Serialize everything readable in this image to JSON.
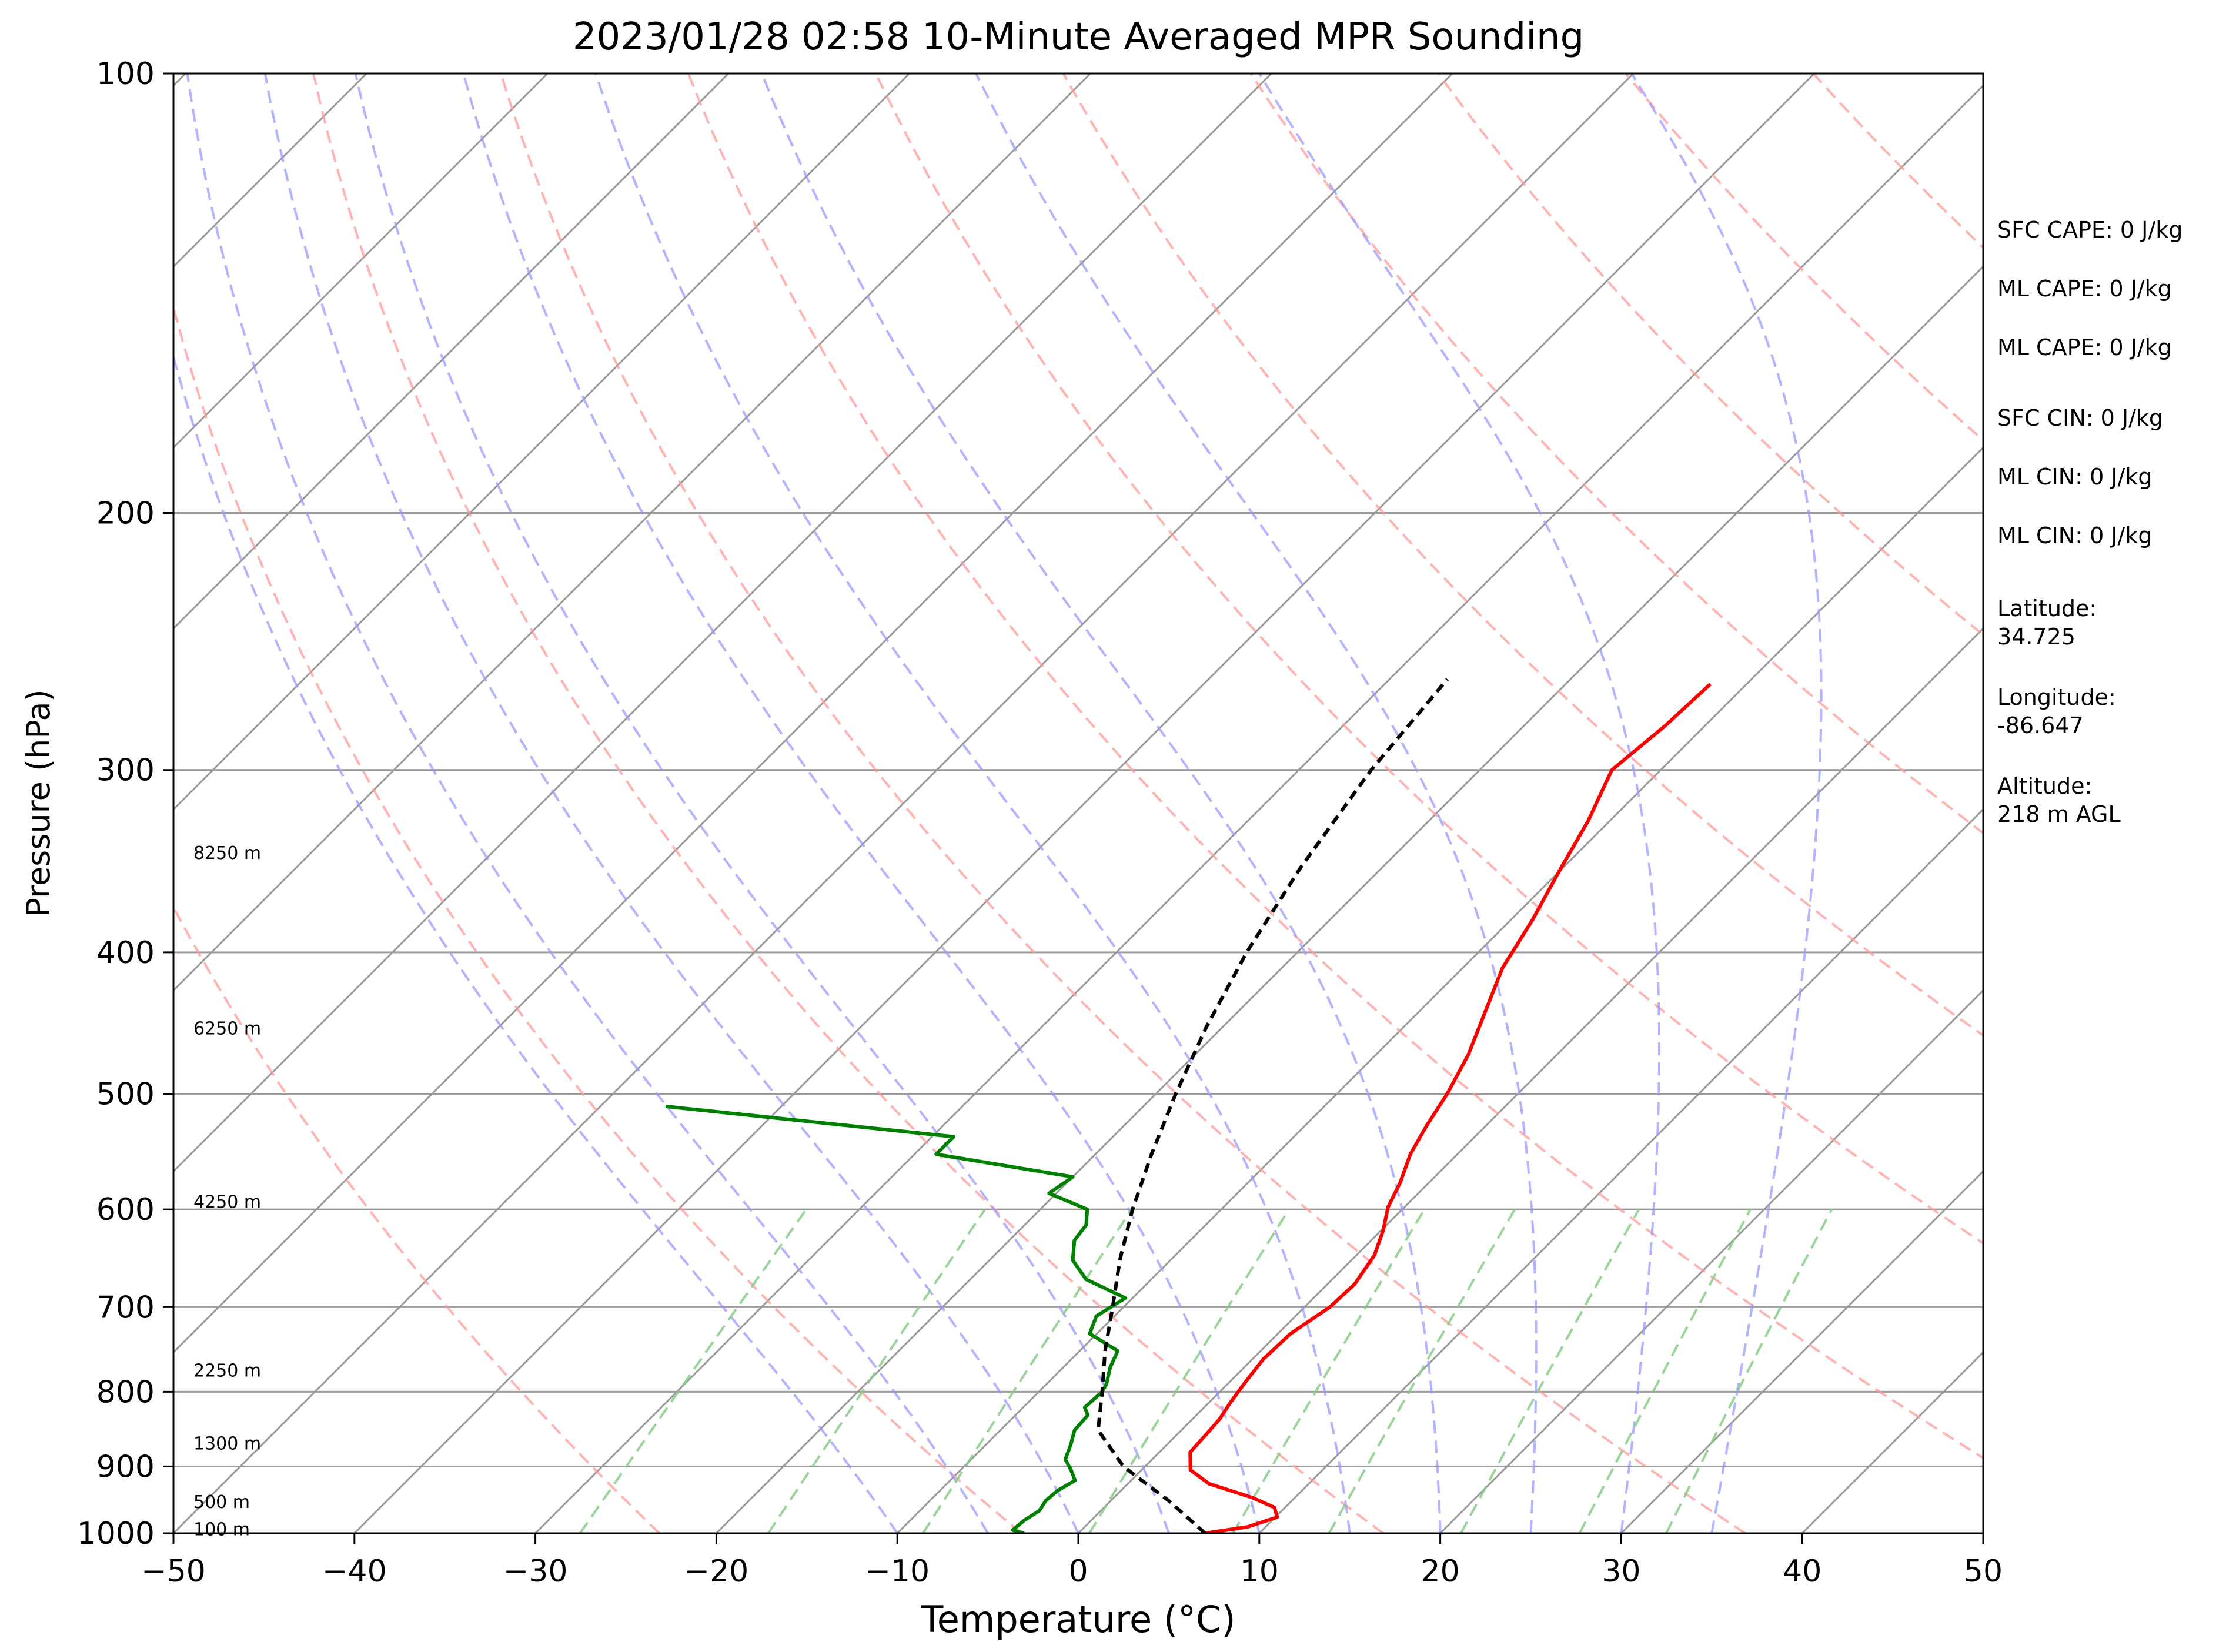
{
  "chart_data": {
    "type": "line",
    "title": "2023/01/28 02:58 10-Minute Averaged MPR Sounding",
    "xlabel": "Temperature (°C)",
    "ylabel": "Pressure (hPa)",
    "xlim": [
      -50,
      50
    ],
    "ylim": [
      1000,
      100
    ],
    "yscale": "log",
    "x_ticks": [
      -50,
      -40,
      -30,
      -20,
      -10,
      0,
      10,
      20,
      30,
      40,
      50
    ],
    "x_tick_labels": [
      "−50",
      "−40",
      "−30",
      "−20",
      "−10",
      "0",
      "10",
      "20",
      "30",
      "40",
      "50"
    ],
    "y_ticks": [
      1000,
      900,
      800,
      700,
      600,
      500,
      400,
      300,
      200,
      100
    ],
    "y_tick_labels": [
      "1000",
      "900",
      "800",
      "700",
      "600",
      "500",
      "400",
      "300",
      "200",
      "100"
    ],
    "skew_deg_per_decade_at_x": 1,
    "grid": true,
    "series": [
      {
        "kind": "temperature",
        "color": "#ff0000",
        "points": [
          [
            1000,
            7.0
          ],
          [
            990,
            9.0
          ],
          [
            975,
            10.1
          ],
          [
            960,
            9.4
          ],
          [
            945,
            7.6
          ],
          [
            925,
            4.5
          ],
          [
            905,
            2.7
          ],
          [
            880,
            1.7
          ],
          [
            855,
            1.6
          ],
          [
            835,
            1.5
          ],
          [
            815,
            1.2
          ],
          [
            790,
            0.9
          ],
          [
            760,
            0.6
          ],
          [
            730,
            0.7
          ],
          [
            700,
            1.4
          ],
          [
            675,
            1.5
          ],
          [
            645,
            1.0
          ],
          [
            620,
            0.1
          ],
          [
            598,
            -0.9
          ],
          [
            575,
            -1.6
          ],
          [
            550,
            -2.6
          ],
          [
            525,
            -3.3
          ],
          [
            500,
            -3.9
          ],
          [
            470,
            -4.9
          ],
          [
            440,
            -6.3
          ],
          [
            410,
            -7.8
          ],
          [
            380,
            -8.8
          ],
          [
            350,
            -10.1
          ],
          [
            325,
            -11.2
          ],
          [
            300,
            -12.7
          ],
          [
            280,
            -12.2
          ],
          [
            262,
            -12.0
          ]
        ]
      },
      {
        "kind": "dewpoint",
        "color": "#008000",
        "points": [
          [
            1000,
            -3.0
          ],
          [
            995,
            -3.8
          ],
          [
            980,
            -3.7
          ],
          [
            965,
            -3.4
          ],
          [
            950,
            -3.6
          ],
          [
            935,
            -3.5
          ],
          [
            920,
            -3.1
          ],
          [
            905,
            -3.9
          ],
          [
            890,
            -4.8
          ],
          [
            870,
            -5.3
          ],
          [
            850,
            -5.9
          ],
          [
            830,
            -6.0
          ],
          [
            820,
            -6.6
          ],
          [
            800,
            -6.5
          ],
          [
            790,
            -6.7
          ],
          [
            770,
            -7.4
          ],
          [
            750,
            -7.9
          ],
          [
            730,
            -10.4
          ],
          [
            710,
            -11.0
          ],
          [
            690,
            -10.4
          ],
          [
            670,
            -13.6
          ],
          [
            650,
            -15.4
          ],
          [
            630,
            -16.4
          ],
          [
            615,
            -16.6
          ],
          [
            600,
            -17.4
          ],
          [
            585,
            -20.4
          ],
          [
            570,
            -20.0
          ],
          [
            550,
            -28.8
          ],
          [
            535,
            -28.8
          ],
          [
            510,
            -46.4
          ]
        ]
      },
      {
        "kind": "parcel",
        "color": "#000000",
        "dash": true,
        "points": [
          [
            1000,
            7.0
          ],
          [
            950,
            3.2
          ],
          [
            900,
            -1.2
          ],
          [
            850,
            -4.6
          ],
          [
            800,
            -6.5
          ],
          [
            750,
            -8.6
          ],
          [
            700,
            -10.6
          ],
          [
            650,
            -12.8
          ],
          [
            600,
            -14.9
          ],
          [
            550,
            -16.9
          ],
          [
            500,
            -18.9
          ],
          [
            450,
            -20.9
          ],
          [
            400,
            -22.8
          ],
          [
            350,
            -24.5
          ],
          [
            300,
            -26.0
          ],
          [
            260,
            -26.8
          ]
        ]
      }
    ],
    "background_lines": {
      "dry_adiabats_theta_K": [
        250,
        270,
        290,
        310,
        330,
        350,
        370,
        390,
        410,
        430,
        450,
        470,
        490,
        510,
        530,
        550,
        570
      ],
      "moist_adiabats_start_C": [
        -10,
        -5,
        0,
        5,
        10,
        15,
        20,
        25,
        30,
        35
      ],
      "mixing_ratios_g_per_kg": [
        0.4,
        1,
        2,
        4,
        7,
        10,
        16,
        24,
        32
      ],
      "dry_color": "#ff9999",
      "moist_color": "#9999ff",
      "mixing_color": "#88cc88",
      "isotherm_color": "#999999"
    },
    "height_labels": [
      {
        "text": "100 m",
        "p": 994
      },
      {
        "text": "500 m",
        "p": 952
      },
      {
        "text": "1300 m",
        "p": 868
      },
      {
        "text": "2250 m",
        "p": 774
      },
      {
        "text": "4250 m",
        "p": 593
      },
      {
        "text": "6250 m",
        "p": 451
      },
      {
        "text": "8250 m",
        "p": 342
      }
    ],
    "annotations": [
      "SFC CAPE: 0 J/kg",
      "ML CAPE: 0 J/kg",
      "ML CAPE: 0 J/kg",
      "SFC CIN: 0 J/kg",
      "ML CIN: 0 J/kg",
      "ML CIN: 0 J/kg",
      "Latitude:",
      "34.725",
      "Longitude:",
      "-86.647",
      "Altitude:",
      "218 m AGL"
    ]
  }
}
